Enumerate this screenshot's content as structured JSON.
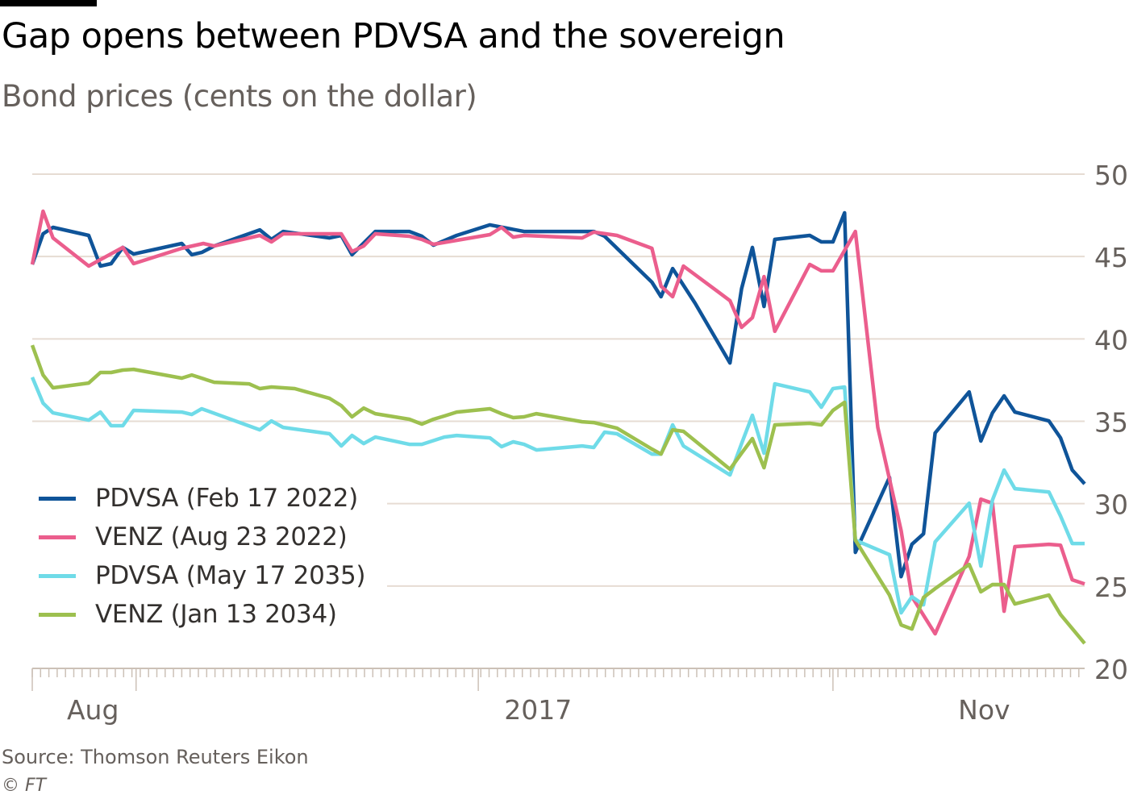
{
  "chart_data": {
    "type": "line",
    "title": "Gap opens between PDVSA and the sovereign",
    "subtitle": "Bond prices (cents on the dollar)",
    "xlabel": "",
    "ylabel": "",
    "ylim": [
      20,
      50
    ],
    "xlim": [
      0,
      126.7
    ],
    "x_unit": "trading-day index",
    "y_ticks": [
      20,
      25,
      30,
      35,
      40,
      45,
      50
    ],
    "y_tick_labels": [
      "20",
      "25",
      "30",
      "35",
      "40",
      "45",
      "50"
    ],
    "y_axis_position": "right",
    "grid": true,
    "x_major_ticks": [
      0,
      12.5,
      53.7,
      96.4
    ],
    "x_tick_labels": [
      {
        "label": "Aug",
        "x": 7.3
      },
      {
        "label": "2017",
        "x": 60.9
      },
      {
        "label": "Nov",
        "x": 114.6
      }
    ],
    "legend_position": "bottom-left",
    "series": [
      {
        "name": "PDVSA (Feb 17 2022)",
        "color": "#0f5499",
        "points": [
          [
            0,
            44.52
          ],
          [
            1.3,
            46.38
          ],
          [
            2.5,
            46.77
          ],
          [
            6.8,
            46.28
          ],
          [
            8.2,
            44.42
          ],
          [
            9.5,
            44.57
          ],
          [
            10.9,
            45.55
          ],
          [
            12.2,
            45.15
          ],
          [
            18.0,
            45.79
          ],
          [
            19.2,
            45.11
          ],
          [
            20.4,
            45.25
          ],
          [
            21.9,
            45.64
          ],
          [
            27.4,
            46.62
          ],
          [
            28.8,
            46.04
          ],
          [
            30.2,
            46.52
          ],
          [
            35.8,
            46.13
          ],
          [
            37.2,
            46.28
          ],
          [
            38.5,
            45.11
          ],
          [
            41.3,
            46.52
          ],
          [
            45.4,
            46.52
          ],
          [
            46.9,
            46.23
          ],
          [
            48.3,
            45.69
          ],
          [
            51.1,
            46.28
          ],
          [
            55.1,
            46.92
          ],
          [
            59.2,
            46.52
          ],
          [
            67.6,
            46.52
          ],
          [
            68.9,
            46.23
          ],
          [
            74.6,
            43.44
          ],
          [
            75.7,
            42.56
          ],
          [
            77.1,
            44.27
          ],
          [
            79.8,
            42.17
          ],
          [
            84.0,
            38.54
          ],
          [
            85.4,
            43.05
          ],
          [
            86.7,
            45.55
          ],
          [
            88.1,
            41.97
          ],
          [
            89.4,
            46.04
          ],
          [
            93.6,
            46.28
          ],
          [
            95.0,
            45.89
          ],
          [
            96.4,
            45.89
          ],
          [
            97.8,
            47.65
          ],
          [
            99.1,
            27.04
          ],
          [
            103.2,
            31.6
          ],
          [
            104.6,
            25.57
          ],
          [
            105.9,
            27.53
          ],
          [
            107.3,
            28.17
          ],
          [
            108.7,
            34.29
          ],
          [
            112.8,
            36.78
          ],
          [
            114.2,
            33.8
          ],
          [
            115.6,
            35.51
          ],
          [
            117.0,
            36.54
          ],
          [
            118.3,
            35.56
          ],
          [
            122.4,
            35.02
          ],
          [
            123.8,
            33.99
          ],
          [
            125.2,
            32.04
          ],
          [
            126.7,
            31.2
          ]
        ]
      },
      {
        "name": "VENZ (Aug 23 2022)",
        "color": "#eb5e8d",
        "points": [
          [
            0,
            44.52
          ],
          [
            1.3,
            47.75
          ],
          [
            2.5,
            46.13
          ],
          [
            6.8,
            44.42
          ],
          [
            8.2,
            44.81
          ],
          [
            10.9,
            45.55
          ],
          [
            12.2,
            44.57
          ],
          [
            18.0,
            45.5
          ],
          [
            20.6,
            45.79
          ],
          [
            21.9,
            45.64
          ],
          [
            27.4,
            46.28
          ],
          [
            28.8,
            45.89
          ],
          [
            30.2,
            46.38
          ],
          [
            37.2,
            46.38
          ],
          [
            38.5,
            45.3
          ],
          [
            39.9,
            45.64
          ],
          [
            41.3,
            46.38
          ],
          [
            45.4,
            46.23
          ],
          [
            46.9,
            46.04
          ],
          [
            48.3,
            45.74
          ],
          [
            55.1,
            46.33
          ],
          [
            56.5,
            46.77
          ],
          [
            57.9,
            46.18
          ],
          [
            59.2,
            46.28
          ],
          [
            66.2,
            46.13
          ],
          [
            67.6,
            46.48
          ],
          [
            70.4,
            46.28
          ],
          [
            74.6,
            45.5
          ],
          [
            75.7,
            43.2
          ],
          [
            77.1,
            42.56
          ],
          [
            78.4,
            44.42
          ],
          [
            84.0,
            42.32
          ],
          [
            85.4,
            40.7
          ],
          [
            86.7,
            41.29
          ],
          [
            88.1,
            43.78
          ],
          [
            89.4,
            40.46
          ],
          [
            93.6,
            44.52
          ],
          [
            95.0,
            44.13
          ],
          [
            96.4,
            44.13
          ],
          [
            99.1,
            46.52
          ],
          [
            101.8,
            34.63
          ],
          [
            104.6,
            28.37
          ],
          [
            105.9,
            24.35
          ],
          [
            108.7,
            22.1
          ],
          [
            112.8,
            26.8
          ],
          [
            114.2,
            30.27
          ],
          [
            115.6,
            30.03
          ],
          [
            117.0,
            23.47
          ],
          [
            118.3,
            27.39
          ],
          [
            122.4,
            27.53
          ],
          [
            123.8,
            27.48
          ],
          [
            125.2,
            25.38
          ],
          [
            126.7,
            25.13
          ]
        ]
      },
      {
        "name": "PDVSA (May 17 2035)",
        "color": "#6fdbe8",
        "points": [
          [
            0,
            37.67
          ],
          [
            1.3,
            36.1
          ],
          [
            2.5,
            35.51
          ],
          [
            6.8,
            35.07
          ],
          [
            8.2,
            35.56
          ],
          [
            9.5,
            34.73
          ],
          [
            10.9,
            34.73
          ],
          [
            12.2,
            35.66
          ],
          [
            18.0,
            35.56
          ],
          [
            19.2,
            35.41
          ],
          [
            20.4,
            35.76
          ],
          [
            27.4,
            34.48
          ],
          [
            28.8,
            35.02
          ],
          [
            30.2,
            34.63
          ],
          [
            35.8,
            34.24
          ],
          [
            37.2,
            33.5
          ],
          [
            38.5,
            34.14
          ],
          [
            39.9,
            33.65
          ],
          [
            41.3,
            34.04
          ],
          [
            45.4,
            33.6
          ],
          [
            46.9,
            33.6
          ],
          [
            49.6,
            34.04
          ],
          [
            51.1,
            34.14
          ],
          [
            55.1,
            33.99
          ],
          [
            56.5,
            33.46
          ],
          [
            57.9,
            33.75
          ],
          [
            59.2,
            33.6
          ],
          [
            60.7,
            33.26
          ],
          [
            66.2,
            33.5
          ],
          [
            67.6,
            33.41
          ],
          [
            68.9,
            34.34
          ],
          [
            70.4,
            34.24
          ],
          [
            74.6,
            33.01
          ],
          [
            75.7,
            33.01
          ],
          [
            77.1,
            34.78
          ],
          [
            78.4,
            33.5
          ],
          [
            84.0,
            31.74
          ],
          [
            85.4,
            33.65
          ],
          [
            86.7,
            35.36
          ],
          [
            88.1,
            33.06
          ],
          [
            89.4,
            37.27
          ],
          [
            93.6,
            36.78
          ],
          [
            95.0,
            35.85
          ],
          [
            96.4,
            36.98
          ],
          [
            97.8,
            37.08
          ],
          [
            99.1,
            27.78
          ],
          [
            103.2,
            26.9
          ],
          [
            104.6,
            23.37
          ],
          [
            105.9,
            24.35
          ],
          [
            107.3,
            23.86
          ],
          [
            108.7,
            27.68
          ],
          [
            112.8,
            30.03
          ],
          [
            114.2,
            26.21
          ],
          [
            115.6,
            30.22
          ],
          [
            117.0,
            32.04
          ],
          [
            118.3,
            30.91
          ],
          [
            122.4,
            30.71
          ],
          [
            123.8,
            29.25
          ],
          [
            125.2,
            27.58
          ],
          [
            126.7,
            27.58
          ]
        ]
      },
      {
        "name": "VENZ (Jan 13 2034)",
        "color": "#9dc04f",
        "points": [
          [
            0,
            39.62
          ],
          [
            1.3,
            37.81
          ],
          [
            2.5,
            37.03
          ],
          [
            6.8,
            37.32
          ],
          [
            8.2,
            37.96
          ],
          [
            9.5,
            37.96
          ],
          [
            10.9,
            38.11
          ],
          [
            12.2,
            38.15
          ],
          [
            18.0,
            37.62
          ],
          [
            19.2,
            37.81
          ],
          [
            21.9,
            37.37
          ],
          [
            26.1,
            37.27
          ],
          [
            27.4,
            36.98
          ],
          [
            28.8,
            37.08
          ],
          [
            31.6,
            36.98
          ],
          [
            35.8,
            36.39
          ],
          [
            37.2,
            35.95
          ],
          [
            38.5,
            35.27
          ],
          [
            39.9,
            35.8
          ],
          [
            41.3,
            35.46
          ],
          [
            45.4,
            35.12
          ],
          [
            46.9,
            34.83
          ],
          [
            48.3,
            35.12
          ],
          [
            49.6,
            35.32
          ],
          [
            51.1,
            35.56
          ],
          [
            55.1,
            35.76
          ],
          [
            56.5,
            35.46
          ],
          [
            57.9,
            35.22
          ],
          [
            59.2,
            35.27
          ],
          [
            60.7,
            35.46
          ],
          [
            66.2,
            34.97
          ],
          [
            67.6,
            34.92
          ],
          [
            70.4,
            34.58
          ],
          [
            74.6,
            33.31
          ],
          [
            75.7,
            33.01
          ],
          [
            77.1,
            34.48
          ],
          [
            78.4,
            34.39
          ],
          [
            84.0,
            32.09
          ],
          [
            85.4,
            33.06
          ],
          [
            86.7,
            33.95
          ],
          [
            88.1,
            32.18
          ],
          [
            89.4,
            34.78
          ],
          [
            93.6,
            34.88
          ],
          [
            95.0,
            34.78
          ],
          [
            96.4,
            35.66
          ],
          [
            97.8,
            36.15
          ],
          [
            99.1,
            27.78
          ],
          [
            103.2,
            24.45
          ],
          [
            104.6,
            22.64
          ],
          [
            105.9,
            22.39
          ],
          [
            107.3,
            24.3
          ],
          [
            108.7,
            24.84
          ],
          [
            112.8,
            26.31
          ],
          [
            114.2,
            24.65
          ],
          [
            115.6,
            25.09
          ],
          [
            117.0,
            25.09
          ],
          [
            118.3,
            23.91
          ],
          [
            122.4,
            24.45
          ],
          [
            123.8,
            23.27
          ],
          [
            126.7,
            21.51
          ]
        ]
      }
    ],
    "source": "Source: Thomson Reuters Eikon",
    "copyright": "© FT"
  }
}
